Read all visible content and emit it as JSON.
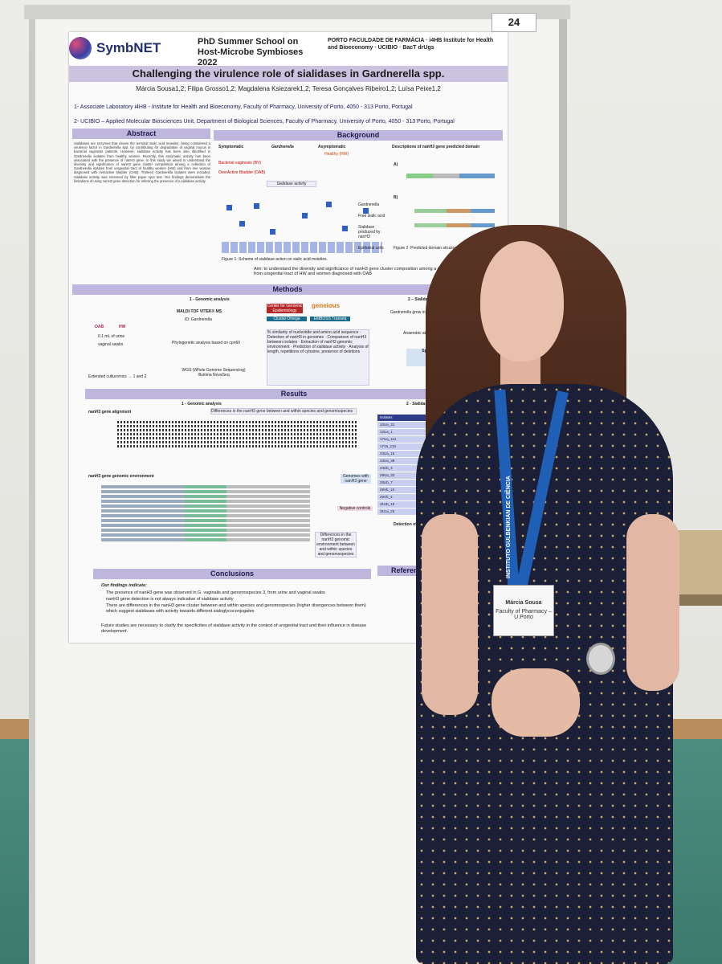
{
  "board_number": "24",
  "poster": {
    "brand": "SymbNET",
    "school": "PhD Summer School on Host-Microbe Symbioses 2022",
    "institutions": "PORTO FACULDADE DE FARMÁCIA · i4HB Institute for Health and Bioeconomy · UCIBIO · BacT drUgs",
    "title": "Challenging the virulence role of sialidases in Gardnerella spp.",
    "authors": "Márcia Sousa1,2; Filipa Grosso1,2; Magdalena Ksiezarek1,2; Teresa Gonçalves Ribeiro1,2; Luísa Peixe1,2",
    "affiliation_1": "1- Associate Laboratory i4HB - Institute for Health and Bioeconomy, Faculty of Pharmacy, University of Porto, 4050 - 313 Porto, Portugal",
    "affiliation_2": "2- UCIBIO – Applied Molecular Biosciences Unit, Department of Biological Sciences, Faculty of Pharmacy, University of Porto, 4050 - 313 Porto, Portugal",
    "sections": {
      "abstract": "Abstract",
      "background": "Background",
      "methods": "Methods",
      "results": "Results",
      "conclusions": "Conclusions",
      "references": "References a"
    },
    "abstract_text": "Sialidases are enzymes that cleave the terminal sialic acid moieties, being considered a virulence factor in Gardnerella spp. by contributing for degradation of vaginal mucus in bacterial vaginosis patients. However, sialidase activity has been also identified in Gardnerella isolates from healthy women. Recently, this enzymatic activity has been associated with the presence of nanH3 gene. In this study we aimed to understand the diversity and significance of nanH3 gene cluster composition among a collection of Gardnerella isolates from urogenital tract of healthy women (HW) and from one woman diagnosed with overactive bladder (OAB). Thirteen Gardnerella isolates were included. Sialidase activity was screened by filter paper spot test. Our findings demonstrate the limitations of using nanH3 gene detection for inferring the presence of a sialidase activity.",
    "background": {
      "symptomatic": "Symptomatic",
      "genus": "Gardnerella",
      "asymptomatic": "Asymptomatic",
      "healthy": "Healthy (HW)",
      "bv": "Bacterial vaginosis (BV)",
      "oab": "OverActive Bladder (OAB)",
      "activity": "Sialidase activity",
      "free_sialic": "Free sialic acid",
      "produced": "Sialidase produced by nanH3",
      "epithelial": "Epithelial cells",
      "fig1": "Figure 1: Scheme of sialidase action on sialic acid moieties.",
      "domains_title": "Descriptions of nanH3 gene predicted domain",
      "label_a": "A)",
      "label_b": "B)",
      "fig2": "Figure 2: Predicted domain structures of nanH3 from"
    },
    "aim": "Aim: to understand the diversity and significance of nanH3 gene cluster composition among a collection of Gardnerella isolates from urogenital tract of HW and women diagnosed with OAB",
    "methods": {
      "genomic": "1 - Genomic analysis",
      "sialidase": "2 – Sialidase activity detect",
      "oab": "OAB",
      "hw": "HW",
      "urine": "0.1 mL of urine",
      "swabs": "vaginal swabs",
      "culturomics": "Extended culturomics → 1 and 2",
      "maldi": "MALDI-TOF VITEK® MS",
      "id": "ID: Gardnerella",
      "phylo": "Phylogenetic analysis based on cpn60",
      "wgs": "WGS (Whole Genome Sequencing) Illumina NovaSeq",
      "tools": [
        "Center for Genomic Epidemiology",
        "geneious",
        "Clustal Omega",
        "EMBOSS Transeq"
      ],
      "steps": "% similarity of nucleotide and amino acid sequence · Detection of nanH3 in genomes · Comparison of nanH3 between isolates · Extraction of nanH3 genomic environment · Prediction of sialidase activity · Analysis of length, repetitions of cytosine, presence of deletions",
      "grow": "Gardnerella grow in BHI + suppl (starch, glucose, yeast extract",
      "anaerobic": "Anaerobic atmospheric condi",
      "spot": "Spot test"
    },
    "results": {
      "genomic": "1 - Genomic analysis",
      "sialidase": "2 - Sialidase a",
      "alignment": "nanH3 gene alignment",
      "differences": "Differences in the nanH3 gene between and within species and genomospecies",
      "environment": "nanH3 gene genomic environment",
      "genomes_with": "Genomes with nanH3 gene",
      "negative": "Negative controls",
      "differences_env": "Differences in the nanH3 genomic environment between and within species and genomospecies",
      "isolates_header": "Isolates",
      "isolates": [
        "10Ua_31",
        "12Ua_1",
        "17Ua_112",
        "17Va_118",
        "23Ua_15",
        "23Ua_38",
        "23Ub_4",
        "29Ua_32",
        "29Ub_7",
        "29Vb_19",
        "29Vb_3",
        "31Ub_15",
        "31Ua_26"
      ],
      "detection": "Detection of sia"
    },
    "conclusions": {
      "intro": "Our findings indicate:",
      "p1": "The presence of nanH3 gene was observed in G. vaginalis and genomospecies 3, from urine and vaginal swabs",
      "p2": "nanH3 gene detection is not always indicative of sialidase activity",
      "p3": "There are differences in the nanH3 gene cluster between and within species and genomospecies (higher divergences between them) which suggest sialidases with activity towards different sialoglycoconjugates",
      "future": "Future studies are necessary to clarify the specificities of sialidase activity in the context of urogenital tract and their influence in disease development."
    }
  },
  "badge": {
    "name": "Márcia Sousa",
    "org": "Faculty of Pharmacy – U.Porto"
  },
  "lanyard_text": "INSTITUTO GULBENKIAN DE CIÊNCIA"
}
